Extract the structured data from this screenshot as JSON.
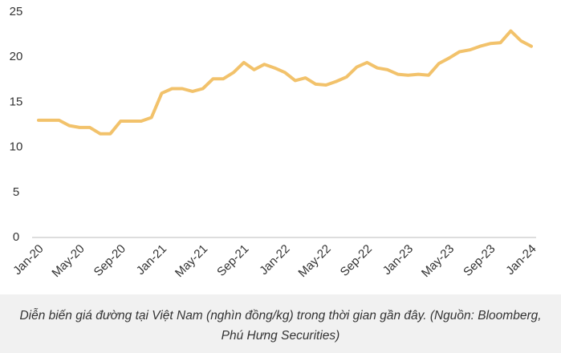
{
  "chart_data": {
    "type": "line",
    "categories": [
      "Jan-20",
      null,
      null,
      null,
      "May-20",
      null,
      null,
      null,
      "Sep-20",
      null,
      null,
      null,
      "Jan-21",
      null,
      null,
      null,
      "May-21",
      null,
      null,
      null,
      "Sep-21",
      null,
      null,
      null,
      "Jan-22",
      null,
      null,
      null,
      "May-22",
      null,
      null,
      null,
      "Sep-22",
      null,
      null,
      null,
      "Jan-23",
      null,
      null,
      null,
      "May-23",
      null,
      null,
      null,
      "Sep-23",
      null,
      null,
      null,
      "Jan-24"
    ],
    "series": [
      {
        "color": "#f2c26b",
        "values": [
          13.0,
          13.0,
          13.0,
          12.4,
          12.2,
          12.2,
          11.5,
          11.5,
          12.9,
          12.9,
          12.9,
          13.3,
          16.0,
          16.5,
          16.5,
          16.2,
          16.5,
          17.6,
          17.6,
          18.3,
          19.4,
          18.6,
          19.2,
          18.8,
          18.3,
          17.4,
          17.7,
          17.0,
          16.9,
          17.3,
          17.8,
          18.9,
          19.4,
          18.8,
          18.6,
          18.1,
          18.0,
          18.1,
          18.0,
          19.3,
          19.9,
          20.6,
          20.8,
          21.2,
          21.5,
          21.6,
          22.9,
          21.8,
          21.2
        ]
      }
    ],
    "ylim": [
      0,
      25
    ],
    "yticks": [
      0,
      5,
      10,
      15,
      20,
      25
    ],
    "grid": false,
    "caption": "Diễn biến giá đường tại Việt Nam (nghìn đồng/kg) trong thời gian gần đây. (Nguồn: Bloomberg, Phú Hưng Securities)"
  }
}
